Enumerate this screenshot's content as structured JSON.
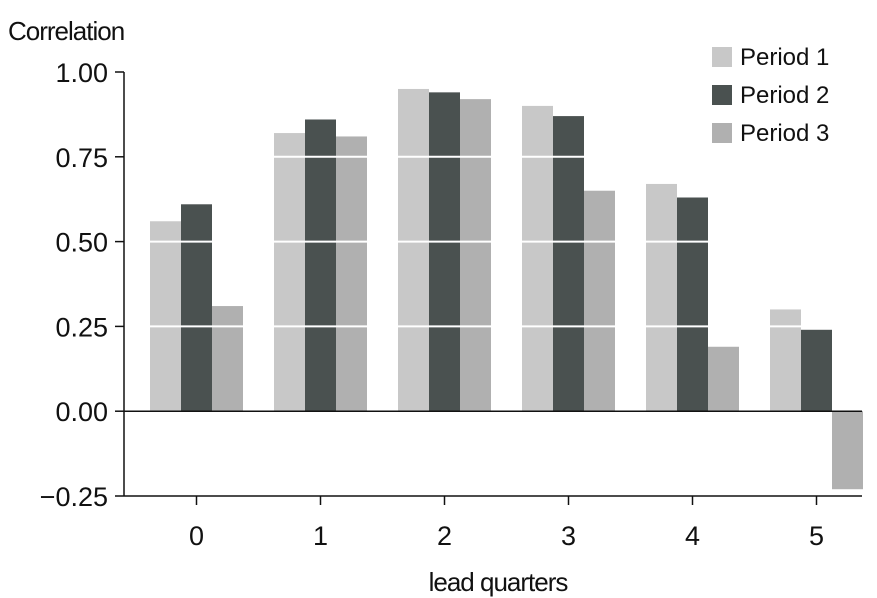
{
  "chart_data": {
    "type": "bar",
    "ylabel": "Correlation",
    "xlabel": "lead quarters",
    "categories": [
      "0",
      "1",
      "2",
      "3",
      "4",
      "5"
    ],
    "ylim": [
      -0.25,
      1.0
    ],
    "yticks": [
      "1.00",
      "0.75",
      "0.50",
      "0.25",
      "0.00",
      "−0.25"
    ],
    "ytick_values": [
      1.0,
      0.75,
      0.5,
      0.25,
      0.0,
      -0.25
    ],
    "gridlines": "white, drawn over bars",
    "legend_position": "top-right",
    "series": [
      {
        "name": "Period 1",
        "color": "#c8c8c8",
        "values": [
          0.56,
          0.82,
          0.95,
          0.9,
          0.67,
          0.3
        ]
      },
      {
        "name": "Period 2",
        "color": "#4a5150",
        "values": [
          0.61,
          0.86,
          0.94,
          0.87,
          0.63,
          0.24
        ]
      },
      {
        "name": "Period 3",
        "color": "#b0b0b0",
        "values": [
          0.31,
          0.81,
          0.92,
          0.65,
          0.19,
          -0.23
        ]
      }
    ]
  }
}
